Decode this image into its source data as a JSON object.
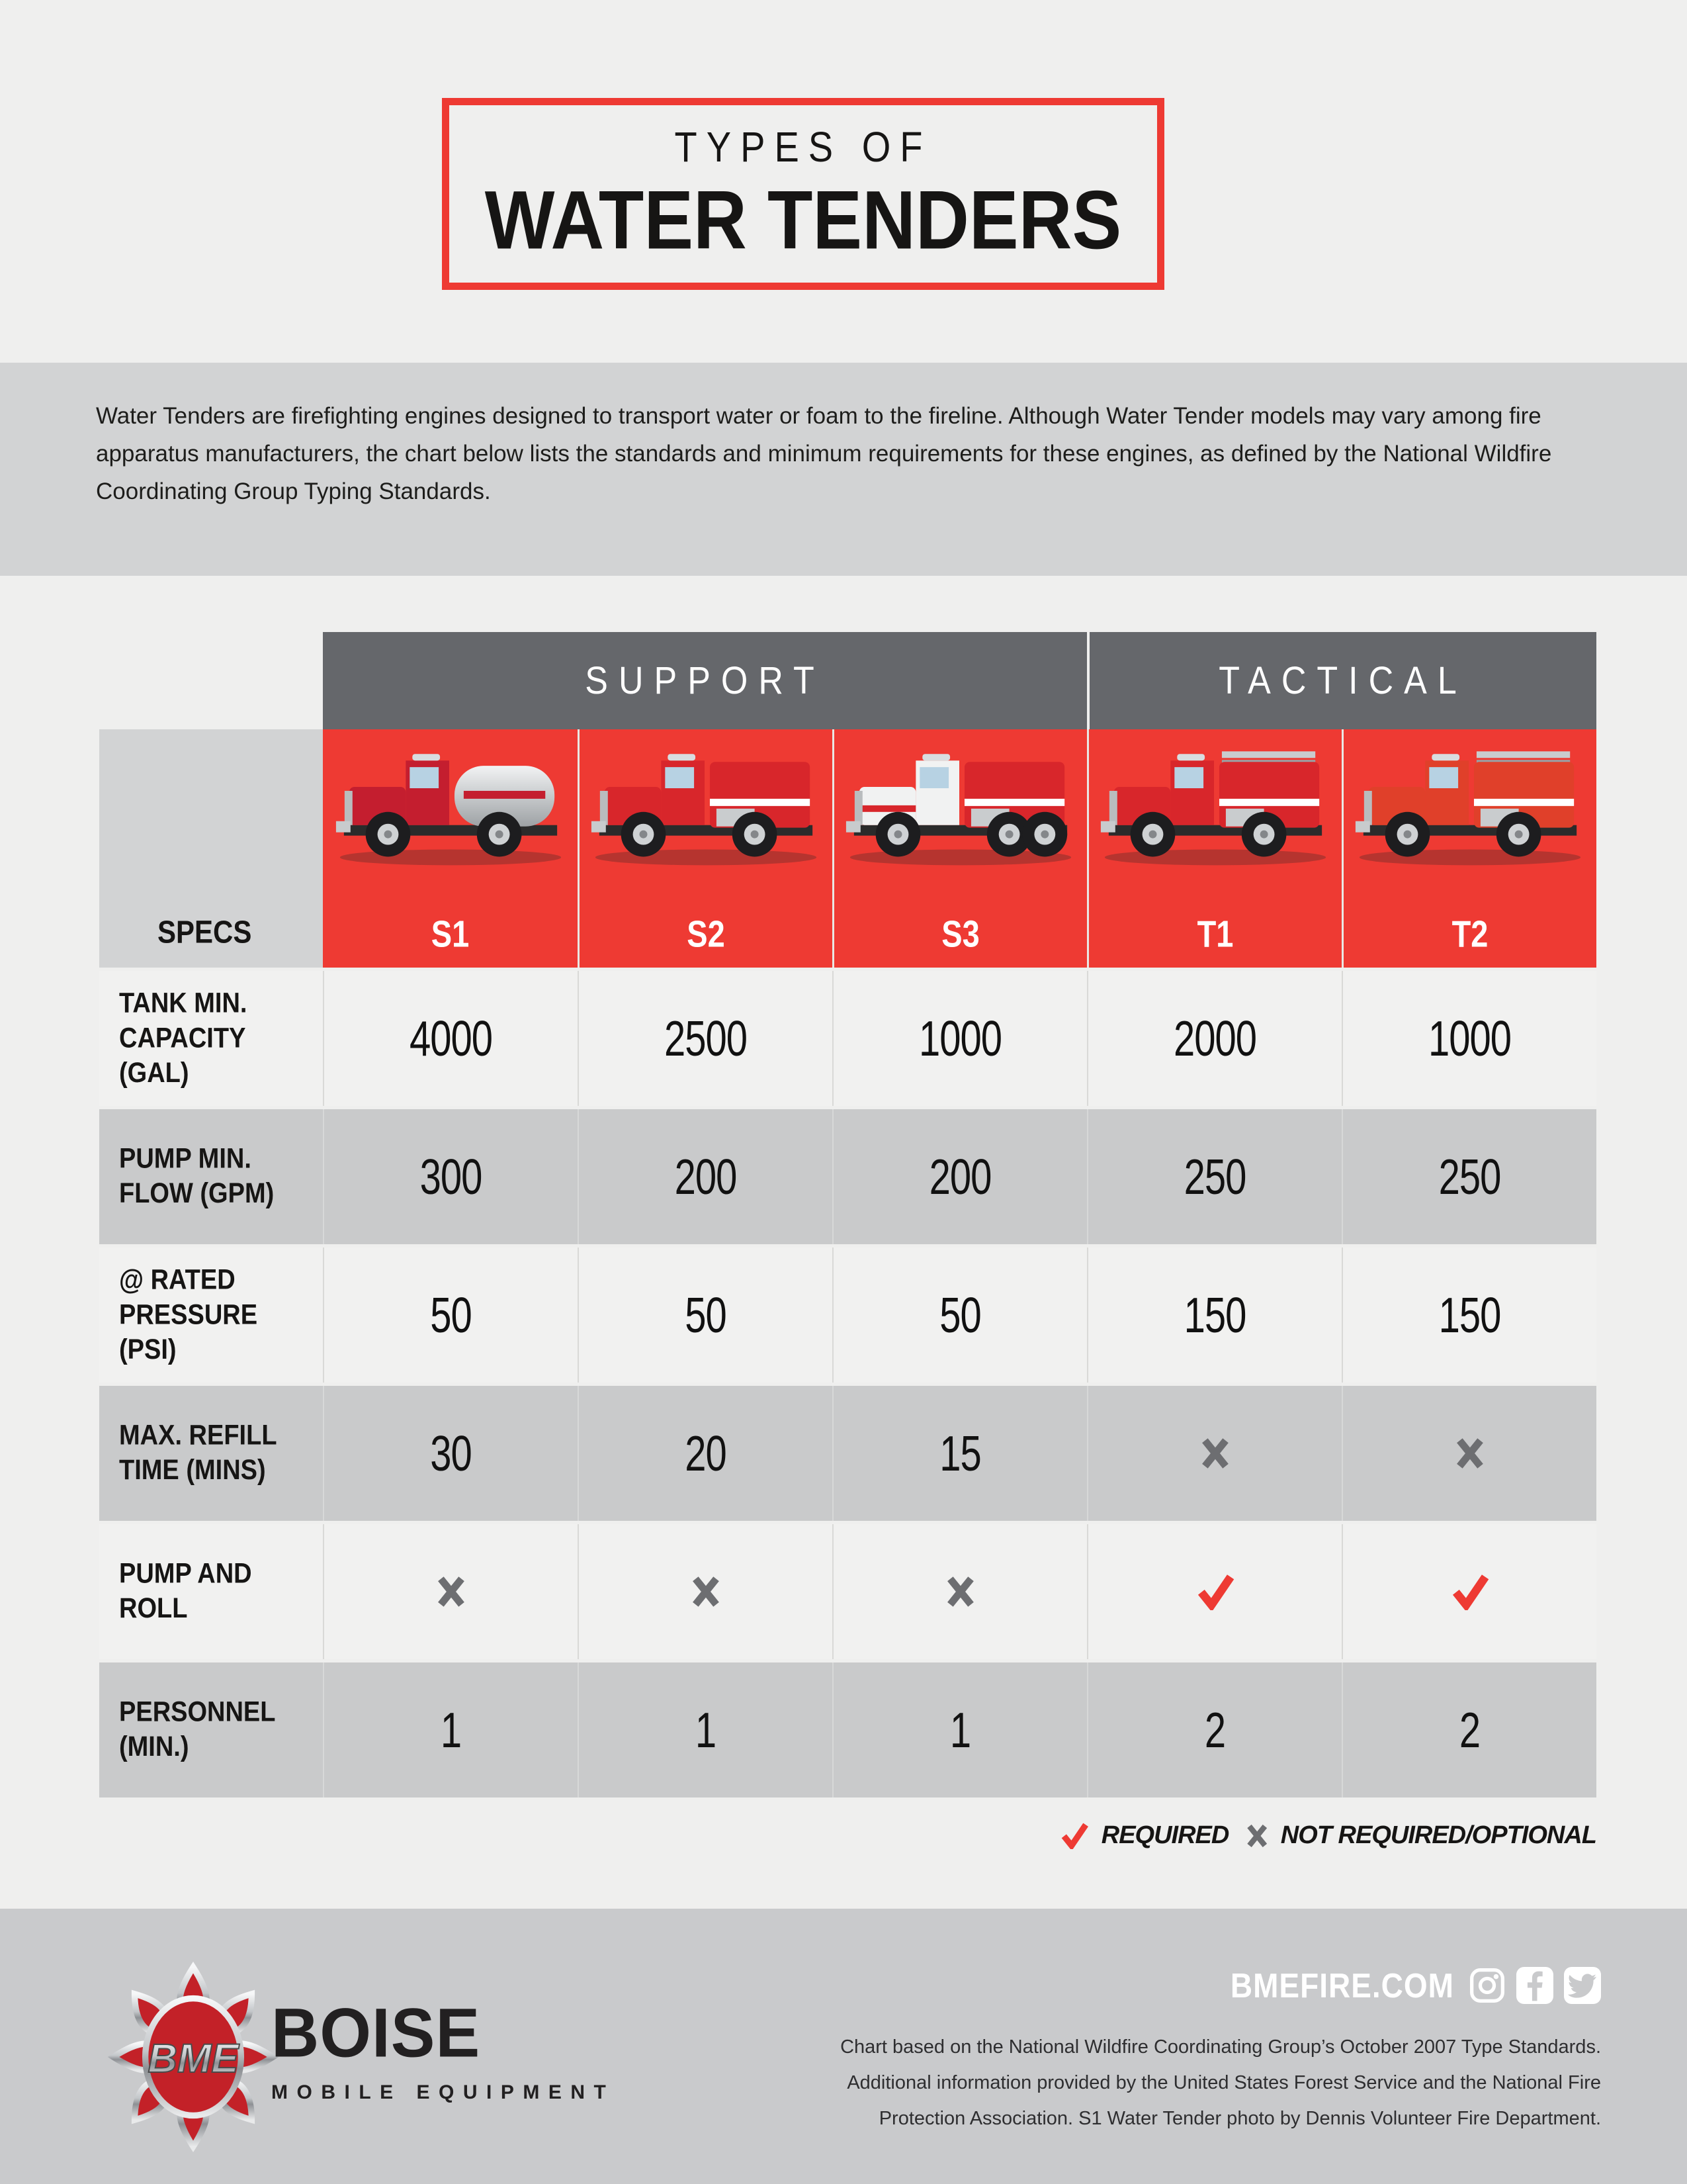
{
  "title": {
    "line1": "TYPES OF",
    "line2": "WATER TENDERS"
  },
  "intro": "Water Tenders are firefighting engines designed to transport water or foam to the fireline. Although Water Tender models may vary among fire apparatus manufacturers, the chart below lists the standards and minimum requirements for these engines, as defined by the National Wildfire Coordinating Group Typing Standards.",
  "colors": {
    "accent_red": "#ee3a33",
    "header_gray": "#65676b",
    "row_light": "#f1f1f0",
    "row_dark": "#c9cacb",
    "band_gray": "#d2d3d4",
    "page_bg": "#efefee",
    "x_mark_gray": "#6d6e71",
    "footer_gray": "#c9cacc"
  },
  "chart_data": {
    "type": "table",
    "title": "Types of Water Tenders",
    "group_headers": [
      {
        "label": "SUPPORT",
        "span": 3
      },
      {
        "label": "TACTICAL",
        "span": 2
      }
    ],
    "specs_label": "SPECS",
    "columns": [
      "S1",
      "S2",
      "S3",
      "T1",
      "T2"
    ],
    "column_images": [
      "truck-photo-s1",
      "truck-photo-s2",
      "truck-photo-s3",
      "truck-photo-t1",
      "truck-photo-t2"
    ],
    "rows": [
      {
        "label": "TANK MIN. CAPACITY (GAL)",
        "values": [
          "4000",
          "2500",
          "1000",
          "2000",
          "1000"
        ]
      },
      {
        "label": "PUMP MIN. FLOW (GPM)",
        "values": [
          "300",
          "200",
          "200",
          "250",
          "250"
        ]
      },
      {
        "label": "@ RATED PRESSURE (PSI)",
        "values": [
          "50",
          "50",
          "50",
          "150",
          "150"
        ]
      },
      {
        "label": "MAX. REFILL TIME (MINS)",
        "values": [
          "30",
          "20",
          "15",
          "x",
          "x"
        ]
      },
      {
        "label": "PUMP AND ROLL",
        "values": [
          "x",
          "x",
          "x",
          "check",
          "check"
        ]
      },
      {
        "label": "PERSONNEL (MIN.)",
        "values": [
          "1",
          "1",
          "1",
          "2",
          "2"
        ]
      }
    ],
    "legend": [
      {
        "symbol": "check",
        "label": "REQUIRED"
      },
      {
        "symbol": "x",
        "label": "NOT REQUIRED/OPTIONAL"
      }
    ]
  },
  "footer": {
    "logo_monogram": "BME",
    "brand_name": "BOISE",
    "brand_sub": "MOBILE EQUIPMENT",
    "website": "BMEFIRE.COM",
    "social_icons": [
      "instagram",
      "facebook",
      "twitter"
    ],
    "fine_print_lines": [
      "Chart based on the National Wildfire Coordinating Group’s October 2007 Type Standards.",
      "Additional information provided by the United States Forest Service and the National Fire",
      "Protection Association.  S1 Water Tender photo by Dennis Volunteer Fire Department."
    ]
  }
}
